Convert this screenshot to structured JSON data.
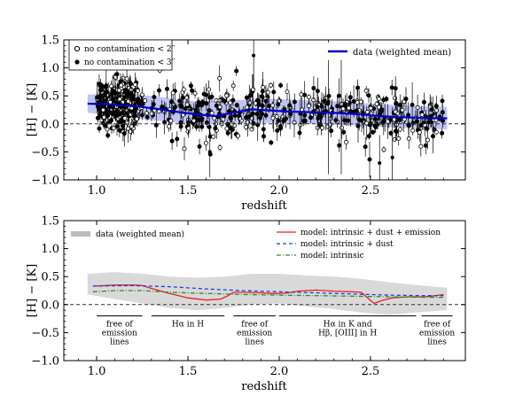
{
  "chart_data": [
    {
      "type": "scatter",
      "xlabel": "redshift",
      "ylabel": "[H] − [K]",
      "xlim": [
        0.82,
        3.02
      ],
      "ylim": [
        -1.0,
        1.5
      ],
      "xticks": [
        "1.0",
        "1.5",
        "2.0",
        "2.5"
      ],
      "yticks": [
        "−1.0",
        "−0.5",
        "0.0",
        "0.5",
        "1.0",
        "1.5"
      ],
      "reference_line_y": 0.0,
      "legend_markers": [
        {
          "label": "no contamination < 2′′",
          "marker": "open-circle"
        },
        {
          "label": "no contamination < 3′′",
          "marker": "filled-circle"
        }
      ],
      "legend_line": {
        "label": "data (weighted mean)",
        "color": "#0000cc"
      },
      "mean_line": {
        "x": [
          0.95,
          1.05,
          1.15,
          1.25,
          1.35,
          1.45,
          1.55,
          1.65,
          1.75,
          1.85,
          1.95,
          2.05,
          2.15,
          2.25,
          2.35,
          2.45,
          2.55,
          2.65,
          2.75,
          2.85,
          2.92
        ],
        "y": [
          0.36,
          0.35,
          0.33,
          0.3,
          0.26,
          0.21,
          0.17,
          0.14,
          0.2,
          0.26,
          0.24,
          0.22,
          0.21,
          0.2,
          0.19,
          0.17,
          0.14,
          0.12,
          0.11,
          0.1,
          0.1
        ]
      },
      "scatter_band": {
        "x": [
          0.95,
          1.15,
          1.35,
          1.55,
          1.75,
          1.95,
          2.15,
          2.35,
          2.55,
          2.75,
          2.92
        ],
        "lower": [
          0.2,
          0.12,
          0.05,
          -0.02,
          0.0,
          0.02,
          0.0,
          -0.02,
          -0.05,
          -0.08,
          -0.1
        ],
        "upper": [
          0.52,
          0.55,
          0.48,
          0.4,
          0.42,
          0.45,
          0.42,
          0.4,
          0.35,
          0.32,
          0.3
        ]
      },
      "points_note": "dense cloud of several hundred objects between z≈1.0 and z≈2.9 with error bars"
    },
    {
      "type": "line",
      "xlabel": "redshift",
      "ylabel": "[H] − [K]",
      "xlim": [
        0.82,
        3.02
      ],
      "ylim": [
        -1.0,
        1.5
      ],
      "xticks": [
        "1.0",
        "1.5",
        "2.0",
        "2.5"
      ],
      "yticks": [
        "−1.0",
        "−0.5",
        "0.0",
        "0.5",
        "1.0",
        "1.5"
      ],
      "reference_line_y": 0.0,
      "data_band": {
        "label": "data (weighted mean)",
        "x": [
          0.95,
          1.1,
          1.25,
          1.4,
          1.55,
          1.7,
          1.85,
          2.0,
          2.15,
          2.3,
          2.45,
          2.6,
          2.75,
          2.92
        ],
        "lower": [
          0.18,
          0.1,
          0.02,
          -0.06,
          -0.1,
          -0.06,
          0.0,
          0.02,
          -0.03,
          -0.08,
          -0.14,
          -0.18,
          -0.14,
          -0.1
        ],
        "upper": [
          0.55,
          0.58,
          0.55,
          0.5,
          0.48,
          0.5,
          0.55,
          0.55,
          0.52,
          0.5,
          0.46,
          0.4,
          0.35,
          0.3
        ]
      },
      "series": [
        {
          "name": "model: intrinsic + dust + emission",
          "color": "#e8202a",
          "dash": "solid",
          "x": [
            0.98,
            1.05,
            1.1,
            1.2,
            1.25,
            1.3,
            1.4,
            1.5,
            1.6,
            1.68,
            1.72,
            1.75,
            1.8,
            1.9,
            1.95,
            2.0,
            2.05,
            2.1,
            2.2,
            2.3,
            2.4,
            2.45,
            2.52,
            2.56,
            2.62,
            2.7,
            2.8,
            2.86,
            2.9
          ],
          "y": [
            0.33,
            0.34,
            0.35,
            0.35,
            0.34,
            0.29,
            0.2,
            0.12,
            0.08,
            0.1,
            0.16,
            0.22,
            0.22,
            0.21,
            0.2,
            0.2,
            0.21,
            0.24,
            0.26,
            0.24,
            0.23,
            0.22,
            0.02,
            0.07,
            0.12,
            0.14,
            0.14,
            0.16,
            0.18
          ]
        },
        {
          "name": "model: intrinsic + dust",
          "color": "#1f3fd6",
          "dash": "dashed",
          "x": [
            0.98,
            1.2,
            1.4,
            1.6,
            1.8,
            2.0,
            2.2,
            2.4,
            2.6,
            2.8,
            2.9
          ],
          "y": [
            0.33,
            0.34,
            0.32,
            0.28,
            0.25,
            0.23,
            0.21,
            0.19,
            0.17,
            0.16,
            0.16
          ]
        },
        {
          "name": "model: intrinsic",
          "color": "#2e8b2e",
          "dash": "dashdot",
          "x": [
            0.98,
            1.1,
            1.25,
            1.4,
            1.6,
            1.8,
            2.0,
            2.2,
            2.4,
            2.6,
            2.8,
            2.9
          ],
          "y": [
            0.23,
            0.25,
            0.25,
            0.22,
            0.2,
            0.18,
            0.17,
            0.16,
            0.15,
            0.14,
            0.13,
            0.13
          ]
        }
      ],
      "regions": [
        {
          "label": "free of\nemission\nlines",
          "x0": 1.0,
          "x1": 1.25
        },
        {
          "label": "Hα in H",
          "x0": 1.3,
          "x1": 1.7
        },
        {
          "label": "free of\nemission\nlines",
          "x0": 1.75,
          "x1": 1.98
        },
        {
          "label": "Hα in K and\nHβ, [OIII] in H",
          "x0": 2.0,
          "x1": 2.75
        },
        {
          "label": "free of\nemission\nlines",
          "x0": 2.78,
          "x1": 2.95
        }
      ]
    }
  ],
  "colors": {
    "mean_blue": "#0000cc",
    "band_blue": "#aab0f0",
    "band_grey": "#d9d9d9",
    "points": "#000000"
  }
}
